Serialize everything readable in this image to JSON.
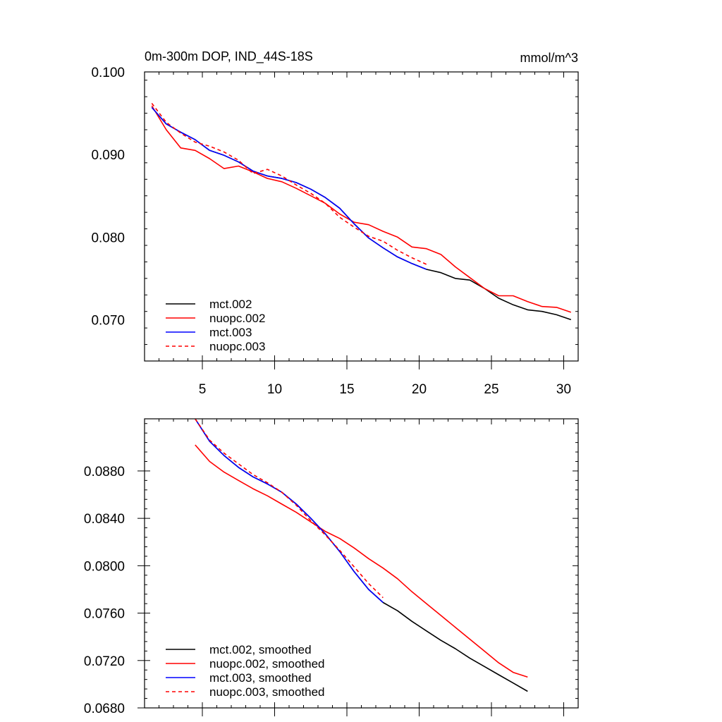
{
  "chart_data": [
    {
      "type": "line",
      "title": "0m-300m DOP, IND_44S-18S",
      "units": "mmol/m^3",
      "xlabel": "",
      "ylabel": "",
      "xlim": [
        1,
        31
      ],
      "ylim": [
        0.065,
        0.1
      ],
      "xticks": [
        5,
        10,
        15,
        20,
        25,
        30
      ],
      "xtick_labels": [
        "5",
        "10",
        "15",
        "20",
        "25",
        "30"
      ],
      "yticks": [
        0.07,
        0.08,
        0.09,
        0.1
      ],
      "ytick_labels": [
        "0.070",
        "0.080",
        "0.090",
        "0.100"
      ],
      "legend_position": "bottom-left",
      "series": [
        {
          "name": "mct.002",
          "color": "#000000",
          "dash": "solid",
          "x": [
            1.5,
            2.5,
            3.5,
            4.5,
            5.5,
            6.5,
            7.5,
            8.5,
            9.5,
            10.5,
            11.5,
            12.5,
            13.5,
            14.5,
            15.5,
            16.5,
            17.5,
            18.5,
            19.5,
            20.5,
            21.5,
            22.5,
            23.5,
            24.5,
            25.5,
            26.5,
            27.5,
            28.5,
            29.5,
            30.5
          ],
          "y": [
            0.0957,
            0.0937,
            0.0927,
            0.0918,
            0.0905,
            0.0899,
            0.0891,
            0.088,
            0.0874,
            0.0871,
            0.0866,
            0.0858,
            0.0848,
            0.0835,
            0.0816,
            0.0799,
            0.0787,
            0.0776,
            0.0768,
            0.0761,
            0.0757,
            0.075,
            0.0748,
            0.0738,
            0.0726,
            0.0718,
            0.0712,
            0.071,
            0.0706,
            0.07
          ]
        },
        {
          "name": "nuopc.002",
          "color": "#ff0000",
          "dash": "solid",
          "x": [
            1.5,
            2.5,
            3.5,
            4.5,
            5.5,
            6.5,
            7.5,
            8.5,
            9.5,
            10.5,
            11.5,
            12.5,
            13.5,
            14.5,
            15.5,
            16.5,
            17.5,
            18.5,
            19.5,
            20.5,
            21.5,
            22.5,
            23.5,
            24.5,
            25.5,
            26.5,
            27.5,
            28.5,
            29.5,
            30.5
          ],
          "y": [
            0.0959,
            0.093,
            0.0908,
            0.0905,
            0.0895,
            0.0883,
            0.0886,
            0.0879,
            0.0871,
            0.0867,
            0.0859,
            0.085,
            0.0841,
            0.0828,
            0.0818,
            0.0815,
            0.0807,
            0.08,
            0.0788,
            0.0786,
            0.0779,
            0.0764,
            0.0751,
            0.0738,
            0.0729,
            0.0729,
            0.0722,
            0.0716,
            0.0715,
            0.0709
          ]
        },
        {
          "name": "mct.003",
          "color": "#0000ff",
          "dash": "solid",
          "x": [
            1.5,
            2.5,
            3.5,
            4.5,
            5.5,
            6.5,
            7.5,
            8.5,
            9.5,
            10.5,
            11.5,
            12.5,
            13.5,
            14.5,
            15.5,
            16.5,
            17.5,
            18.5,
            19.5,
            20.5
          ],
          "y": [
            0.0957,
            0.0937,
            0.0927,
            0.0918,
            0.0905,
            0.0899,
            0.0891,
            0.088,
            0.0874,
            0.0871,
            0.0866,
            0.0858,
            0.0848,
            0.0835,
            0.0816,
            0.0799,
            0.0787,
            0.0776,
            0.0768,
            0.0761
          ]
        },
        {
          "name": "nuopc.003",
          "color": "#ff0000",
          "dash": "dashed",
          "x": [
            1.5,
            2.5,
            3.5,
            4.5,
            5.5,
            6.5,
            7.5,
            8.5,
            9.5,
            10.5,
            11.5,
            12.5,
            13.5,
            14.5,
            15.5,
            16.5,
            17.5,
            18.5,
            19.5,
            20.5
          ],
          "y": [
            0.0962,
            0.0939,
            0.0926,
            0.0915,
            0.091,
            0.0903,
            0.0893,
            0.0877,
            0.0882,
            0.0874,
            0.0863,
            0.0853,
            0.0841,
            0.0824,
            0.0812,
            0.0801,
            0.0795,
            0.0784,
            0.0775,
            0.0767
          ]
        }
      ]
    },
    {
      "type": "line",
      "title": "",
      "xlabel": "",
      "ylabel": "",
      "xlim": [
        1,
        31
      ],
      "ylim": [
        0.068,
        0.0924
      ],
      "xticks": [
        5,
        10,
        15,
        20,
        25,
        30
      ],
      "xtick_labels": [],
      "yticks": [
        0.068,
        0.072,
        0.076,
        0.08,
        0.084,
        0.088
      ],
      "ytick_labels": [
        "0.0680",
        "0.0720",
        "0.0760",
        "0.0800",
        "0.0840",
        "0.0880"
      ],
      "legend_position": "bottom-left",
      "series": [
        {
          "name": "mct.002, smoothed",
          "color": "#000000",
          "dash": "solid",
          "x": [
            4.5,
            5.5,
            6.5,
            7.5,
            8.5,
            9.5,
            10.5,
            11.5,
            12.5,
            13.5,
            14.5,
            15.5,
            16.5,
            17.5,
            18.5,
            19.5,
            20.5,
            21.5,
            22.5,
            23.5,
            24.5,
            25.5,
            26.5,
            27.5
          ],
          "y": [
            0.0924,
            0.0905,
            0.0893,
            0.0883,
            0.0875,
            0.0869,
            0.0862,
            0.0852,
            0.084,
            0.0827,
            0.0812,
            0.0795,
            0.078,
            0.0769,
            0.0762,
            0.0753,
            0.0745,
            0.0737,
            0.073,
            0.0722,
            0.0715,
            0.0708,
            0.0701,
            0.0694
          ]
        },
        {
          "name": "nuopc.002, smoothed",
          "color": "#ff0000",
          "dash": "solid",
          "x": [
            4.5,
            5.5,
            6.5,
            7.5,
            8.5,
            9.5,
            10.5,
            11.5,
            12.5,
            13.5,
            14.5,
            15.5,
            16.5,
            17.5,
            18.5,
            19.5,
            20.5,
            21.5,
            22.5,
            23.5,
            24.5,
            25.5,
            26.5,
            27.5
          ],
          "y": [
            0.0902,
            0.0888,
            0.0879,
            0.0872,
            0.0865,
            0.0859,
            0.0852,
            0.0845,
            0.0837,
            0.0829,
            0.0823,
            0.0815,
            0.0806,
            0.0798,
            0.0789,
            0.0778,
            0.0768,
            0.0758,
            0.0748,
            0.0738,
            0.0728,
            0.0718,
            0.071,
            0.0706
          ]
        },
        {
          "name": "mct.003, smoothed",
          "color": "#0000ff",
          "dash": "solid",
          "x": [
            4.5,
            5.5,
            6.5,
            7.5,
            8.5,
            9.5,
            10.5,
            11.5,
            12.5,
            13.5,
            14.5,
            15.5,
            16.5,
            17.5
          ],
          "y": [
            0.0924,
            0.0905,
            0.0893,
            0.0883,
            0.0875,
            0.0869,
            0.0862,
            0.0852,
            0.084,
            0.0827,
            0.0812,
            0.0795,
            0.078,
            0.0769
          ]
        },
        {
          "name": "nuopc.003, smoothed",
          "color": "#ff0000",
          "dash": "dashed",
          "x": [
            4.5,
            5.5,
            6.5,
            7.5,
            8.5,
            9.5,
            10.5,
            11.5,
            12.5,
            13.5,
            14.5,
            15.5,
            16.5,
            17.5
          ],
          "y": [
            0.0924,
            0.0906,
            0.0895,
            0.0886,
            0.0877,
            0.087,
            0.0862,
            0.0851,
            0.0838,
            0.0826,
            0.0813,
            0.0799,
            0.0785,
            0.0773
          ]
        }
      ]
    }
  ]
}
